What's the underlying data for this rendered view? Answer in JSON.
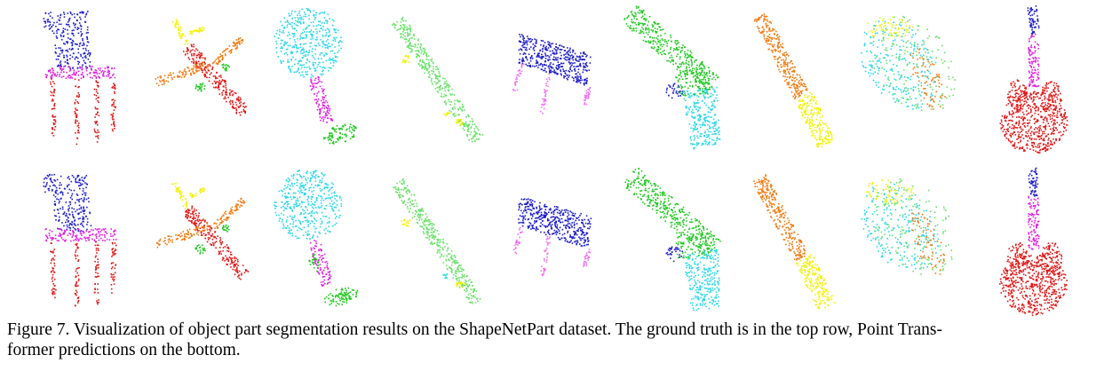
{
  "figure": {
    "rows": [
      {
        "name": "ground-truth",
        "objects": [
          "chair",
          "airplane",
          "lamp",
          "skateboard",
          "table",
          "pistol",
          "knife",
          "cap",
          "guitar"
        ]
      },
      {
        "name": "prediction",
        "objects": [
          "chair",
          "airplane",
          "lamp",
          "skateboard",
          "table",
          "pistol",
          "knife",
          "cap",
          "guitar"
        ]
      }
    ],
    "part_colors": {
      "blue": "#1c1cc8",
      "magenta": "#e020e0",
      "red": "#e01818",
      "yellow": "#f2f200",
      "orange": "#f07a10",
      "green": "#20c820",
      "cyan": "#28d8e8",
      "light_green": "#6ce06c",
      "pink": "#f070f0"
    }
  },
  "caption": {
    "line1": "Figure 7. Visualization of object part segmentation results on the ShapeNetPart dataset.  The ground truth is in the top row, Point Trans-",
    "line2": "former predictions on the bottom."
  }
}
